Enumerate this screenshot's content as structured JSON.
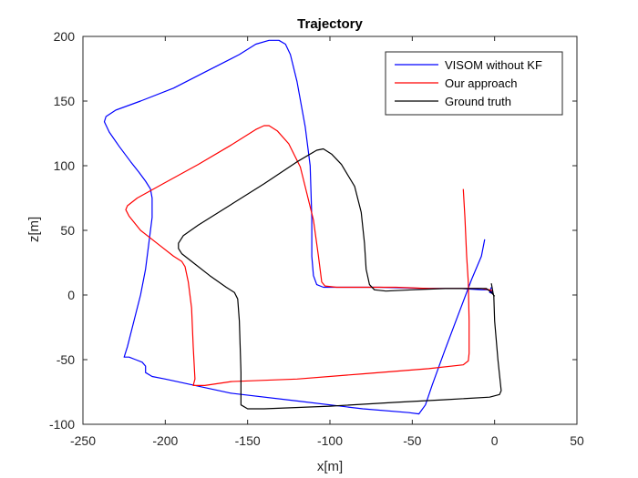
{
  "chart_data": {
    "type": "line",
    "title": "Trajectory",
    "xlabel": "x[m]",
    "ylabel": "z[m]",
    "xlim": [
      -250,
      50
    ],
    "ylim": [
      -100,
      200
    ],
    "xticks": [
      -250,
      -200,
      -150,
      -100,
      -50,
      0,
      50
    ],
    "yticks": [
      -100,
      -50,
      0,
      50,
      100,
      150,
      200
    ],
    "grid": false,
    "legend_position": "top-right",
    "series": [
      {
        "name": "VISOM without KF",
        "color": "#0000ff",
        "points": [
          [
            -6,
            43
          ],
          [
            -8,
            30
          ],
          [
            -14,
            12
          ],
          [
            -22,
            -15
          ],
          [
            -30,
            -42
          ],
          [
            -38,
            -70
          ],
          [
            -42,
            -85
          ],
          [
            -46,
            -92
          ],
          [
            -52,
            -91
          ],
          [
            -80,
            -88
          ],
          [
            -120,
            -82
          ],
          [
            -160,
            -76
          ],
          [
            -200,
            -65
          ],
          [
            -208,
            -63
          ],
          [
            -212,
            -60
          ],
          [
            -212,
            -55
          ],
          [
            -214,
            -52
          ],
          [
            -218,
            -50
          ],
          [
            -222,
            -48
          ],
          [
            -225,
            -48
          ],
          [
            -223,
            -40
          ],
          [
            -219,
            -20
          ],
          [
            -215,
            0
          ],
          [
            -212,
            20
          ],
          [
            -210,
            40
          ],
          [
            -208,
            60
          ],
          [
            -208,
            75
          ],
          [
            -209,
            82
          ],
          [
            -212,
            88
          ],
          [
            -216,
            95
          ],
          [
            -221,
            103
          ],
          [
            -228,
            115
          ],
          [
            -234,
            126
          ],
          [
            -237,
            134
          ],
          [
            -236,
            138
          ],
          [
            -230,
            143
          ],
          [
            -215,
            150
          ],
          [
            -195,
            160
          ],
          [
            -175,
            173
          ],
          [
            -155,
            186
          ],
          [
            -145,
            194
          ],
          [
            -137,
            197
          ],
          [
            -131,
            197
          ],
          [
            -127,
            194
          ],
          [
            -124,
            186
          ],
          [
            -120,
            165
          ],
          [
            -115,
            130
          ],
          [
            -112,
            100
          ],
          [
            -111,
            60
          ],
          [
            -111,
            30
          ],
          [
            -110,
            15
          ],
          [
            -108,
            8
          ],
          [
            -104,
            6
          ],
          [
            -70,
            6
          ],
          [
            -40,
            5
          ],
          [
            -20,
            5
          ],
          [
            -8,
            4
          ],
          [
            -4,
            4
          ],
          [
            -2,
            3
          ],
          [
            -1,
            1
          ],
          [
            -3,
            2
          ],
          [
            -2,
            6
          ]
        ]
      },
      {
        "name": "Our approach",
        "color": "#ff0000",
        "points": [
          [
            -19,
            82
          ],
          [
            -18,
            60
          ],
          [
            -17,
            30
          ],
          [
            -16,
            10
          ],
          [
            -15.5,
            -20
          ],
          [
            -15.5,
            -45
          ],
          [
            -16,
            -51
          ],
          [
            -19,
            -54
          ],
          [
            -40,
            -57
          ],
          [
            -80,
            -61
          ],
          [
            -120,
            -65
          ],
          [
            -160,
            -67
          ],
          [
            -176,
            -70
          ],
          [
            -180,
            -70
          ],
          [
            -183,
            -70
          ],
          [
            -182,
            -65
          ],
          [
            -183,
            -40
          ],
          [
            -184,
            -10
          ],
          [
            -186,
            10
          ],
          [
            -188,
            22
          ],
          [
            -190,
            26
          ],
          [
            -195,
            30
          ],
          [
            -205,
            40
          ],
          [
            -215,
            50
          ],
          [
            -222,
            61
          ],
          [
            -224,
            66
          ],
          [
            -223,
            69
          ],
          [
            -217,
            75
          ],
          [
            -200,
            87
          ],
          [
            -180,
            101
          ],
          [
            -160,
            116
          ],
          [
            -145,
            128
          ],
          [
            -140,
            131
          ],
          [
            -137,
            131
          ],
          [
            -132,
            127
          ],
          [
            -125,
            117
          ],
          [
            -118,
            99
          ],
          [
            -110,
            58
          ],
          [
            -107,
            30
          ],
          [
            -105,
            10
          ],
          [
            -103,
            7
          ],
          [
            -96,
            6
          ],
          [
            -80,
            6
          ],
          [
            -60,
            6
          ],
          [
            -40,
            5
          ],
          [
            -20,
            5
          ],
          [
            -8,
            5
          ],
          [
            -3,
            4
          ],
          [
            -1,
            3
          ]
        ]
      },
      {
        "name": "Ground truth",
        "color": "#000000",
        "points": [
          [
            -2,
            9
          ],
          [
            -1,
            2
          ],
          [
            -0.5,
            -1
          ],
          [
            0,
            -20
          ],
          [
            2,
            -50
          ],
          [
            4,
            -74
          ],
          [
            3,
            -77
          ],
          [
            -3,
            -79
          ],
          [
            -30,
            -81
          ],
          [
            -60,
            -83
          ],
          [
            -100,
            -86
          ],
          [
            -140,
            -88
          ],
          [
            -150,
            -88
          ],
          [
            -154,
            -85
          ],
          [
            -154,
            -60
          ],
          [
            -155,
            -20
          ],
          [
            -156,
            -3
          ],
          [
            -158,
            2
          ],
          [
            -163,
            6
          ],
          [
            -173,
            15
          ],
          [
            -183,
            25
          ],
          [
            -190,
            32
          ],
          [
            -192,
            36
          ],
          [
            -192,
            40
          ],
          [
            -189,
            46
          ],
          [
            -180,
            54
          ],
          [
            -160,
            70
          ],
          [
            -140,
            86
          ],
          [
            -120,
            103
          ],
          [
            -108,
            112
          ],
          [
            -104,
            113
          ],
          [
            -99,
            109
          ],
          [
            -93,
            101
          ],
          [
            -85,
            84
          ],
          [
            -81,
            64
          ],
          [
            -79,
            40
          ],
          [
            -78,
            20
          ],
          [
            -76,
            8
          ],
          [
            -73,
            4
          ],
          [
            -66,
            3
          ],
          [
            -50,
            4
          ],
          [
            -30,
            5
          ],
          [
            -15,
            5
          ],
          [
            -5,
            5
          ],
          [
            -2,
            2
          ],
          [
            0,
            -1
          ]
        ]
      }
    ]
  }
}
